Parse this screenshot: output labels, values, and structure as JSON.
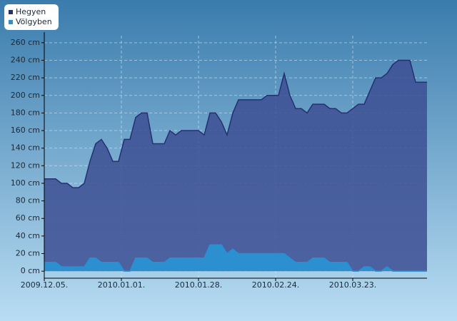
{
  "chart_data": {
    "type": "area",
    "x": [
      "2009-12-05",
      "2009-12-07",
      "2009-12-09",
      "2009-12-11",
      "2009-12-13",
      "2009-12-15",
      "2009-12-17",
      "2009-12-19",
      "2009-12-21",
      "2009-12-23",
      "2009-12-25",
      "2009-12-27",
      "2009-12-29",
      "2009-12-31",
      "2010-01-02",
      "2010-01-04",
      "2010-01-06",
      "2010-01-08",
      "2010-01-10",
      "2010-01-12",
      "2010-01-14",
      "2010-01-16",
      "2010-01-18",
      "2010-01-20",
      "2010-01-22",
      "2010-01-24",
      "2010-01-26",
      "2010-01-28",
      "2010-01-30",
      "2010-02-01",
      "2010-02-03",
      "2010-02-05",
      "2010-02-07",
      "2010-02-09",
      "2010-02-11",
      "2010-02-13",
      "2010-02-15",
      "2010-02-17",
      "2010-02-19",
      "2010-02-21",
      "2010-02-23",
      "2010-02-25",
      "2010-02-27",
      "2010-03-01",
      "2010-03-03",
      "2010-03-05",
      "2010-03-07",
      "2010-03-09",
      "2010-03-11",
      "2010-03-13",
      "2010-03-15",
      "2010-03-17",
      "2010-03-19",
      "2010-03-21",
      "2010-03-23",
      "2010-03-25",
      "2010-03-27",
      "2010-03-29",
      "2010-03-31",
      "2010-04-02",
      "2010-04-04",
      "2010-04-06",
      "2010-04-08",
      "2010-04-10",
      "2010-04-12",
      "2010-04-14",
      "2010-04-16",
      "2010-04-18"
    ],
    "series": [
      {
        "name": "Hegyen",
        "color": "#26306f",
        "fill": "#3d4f93",
        "values": [
          105,
          105,
          105,
          100,
          100,
          95,
          95,
          100,
          125,
          145,
          150,
          140,
          125,
          125,
          150,
          150,
          175,
          180,
          180,
          145,
          145,
          145,
          160,
          155,
          160,
          160,
          160,
          160,
          155,
          180,
          180,
          170,
          155,
          180,
          195,
          195,
          195,
          195,
          195,
          200,
          200,
          200,
          225,
          200,
          185,
          185,
          180,
          190,
          190,
          190,
          185,
          185,
          180,
          180,
          185,
          190,
          190,
          205,
          220,
          220,
          225,
          235,
          240,
          240,
          240,
          215,
          215,
          215
        ]
      },
      {
        "name": "Völgyben",
        "color": "#2b8fd0",
        "fill": "#2b8fd0",
        "values": [
          10,
          10,
          10,
          5,
          5,
          5,
          5,
          5,
          15,
          15,
          10,
          10,
          10,
          10,
          0,
          0,
          15,
          15,
          15,
          10,
          10,
          10,
          15,
          15,
          15,
          15,
          15,
          15,
          15,
          30,
          30,
          30,
          20,
          25,
          20,
          20,
          20,
          20,
          20,
          20,
          20,
          20,
          20,
          15,
          10,
          10,
          10,
          15,
          15,
          15,
          10,
          10,
          10,
          10,
          0,
          0,
          5,
          5,
          0,
          0,
          5,
          0,
          0,
          0,
          0,
          0,
          0,
          0
        ]
      }
    ],
    "xlim": [
      "2009-12-05",
      "2010-04-18"
    ],
    "xticks": [
      {
        "value": "2009-12-05",
        "label": "2009.12.05."
      },
      {
        "value": "2010-01-01",
        "label": "2010.01.01."
      },
      {
        "value": "2010-01-28",
        "label": "2010.01.28."
      },
      {
        "value": "2010-02-24",
        "label": "2010.02.24."
      },
      {
        "value": "2010-03-23",
        "label": "2010.03.23."
      }
    ],
    "ylim": [
      -8,
      268
    ],
    "yticks": [
      {
        "value": 0,
        "label": "0 cm"
      },
      {
        "value": 20,
        "label": "20 cm"
      },
      {
        "value": 40,
        "label": "40 cm"
      },
      {
        "value": 60,
        "label": "60 cm"
      },
      {
        "value": 80,
        "label": "80 cm"
      },
      {
        "value": 100,
        "label": "100 cm"
      },
      {
        "value": 120,
        "label": "120 cm"
      },
      {
        "value": 140,
        "label": "140 cm"
      },
      {
        "value": 160,
        "label": "160 cm"
      },
      {
        "value": 180,
        "label": "180 cm"
      },
      {
        "value": 200,
        "label": "200 cm"
      },
      {
        "value": 220,
        "label": "220 cm"
      },
      {
        "value": 240,
        "label": "240 cm"
      },
      {
        "value": 260,
        "label": "260 cm"
      }
    ],
    "grid": true,
    "legend": "top-left"
  }
}
